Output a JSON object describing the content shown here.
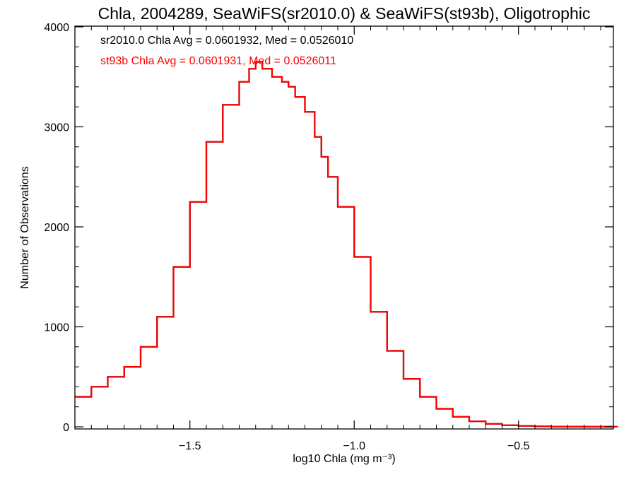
{
  "chart_data": {
    "type": "line",
    "title": "Chla, 2004289, SeaWiFS(sr2010.0) & SeaWiFS(st93b), Oligotrophic",
    "xlabel": "log10 Chla (mg m⁻³)",
    "ylabel": "Number of Observations",
    "xlim": [
      -1.85,
      -0.2
    ],
    "ylim": [
      0,
      4000
    ],
    "x_ticks": [
      -1.5,
      -1.0,
      -0.5
    ],
    "x_tick_labels": [
      "−1.5",
      "−1.0",
      "−0.5"
    ],
    "y_ticks": [
      0,
      1000,
      2000,
      3000,
      4000
    ],
    "y_tick_labels": [
      "0",
      "1000",
      "2000",
      "3000",
      "4000"
    ],
    "grid": false,
    "step": true,
    "annotations": [
      {
        "text": "sr2010.0 Chla Avg = 0.0601932, Med = 0.0526010",
        "color": "#000000"
      },
      {
        "text": "st93b Chla Avg = 0.0601931, Med = 0.0526011",
        "color": "#ff0000"
      }
    ],
    "series": [
      {
        "color": "#000000",
        "x": [
          -1.85,
          -1.8,
          -1.75,
          -1.7,
          -1.65,
          -1.6,
          -1.55,
          -1.5,
          -1.45,
          -1.4,
          -1.35,
          -1.32,
          -1.3,
          -1.28,
          -1.25,
          -1.22,
          -1.2,
          -1.18,
          -1.15,
          -1.12,
          -1.1,
          -1.08,
          -1.05,
          -1.0,
          -0.95,
          -0.9,
          -0.85,
          -0.8,
          -0.75,
          -0.7,
          -0.65,
          -0.6,
          -0.55,
          -0.5,
          -0.45,
          -0.4,
          -0.3,
          -0.2
        ],
        "y": [
          300,
          400,
          500,
          600,
          800,
          1100,
          1600,
          2250,
          2850,
          3220,
          3450,
          3580,
          3650,
          3580,
          3500,
          3450,
          3400,
          3300,
          3150,
          2900,
          2700,
          2500,
          2200,
          1700,
          1150,
          760,
          480,
          300,
          180,
          100,
          55,
          30,
          15,
          10,
          5,
          3,
          1,
          0
        ]
      },
      {
        "color": "#ff0000",
        "x": [
          -1.85,
          -1.8,
          -1.75,
          -1.7,
          -1.65,
          -1.6,
          -1.55,
          -1.5,
          -1.45,
          -1.4,
          -1.35,
          -1.32,
          -1.3,
          -1.28,
          -1.25,
          -1.22,
          -1.2,
          -1.18,
          -1.15,
          -1.12,
          -1.1,
          -1.08,
          -1.05,
          -1.0,
          -0.95,
          -0.9,
          -0.85,
          -0.8,
          -0.75,
          -0.7,
          -0.65,
          -0.6,
          -0.55,
          -0.5,
          -0.45,
          -0.4,
          -0.3,
          -0.2
        ],
        "y": [
          300,
          400,
          500,
          600,
          800,
          1100,
          1600,
          2250,
          2850,
          3220,
          3450,
          3580,
          3650,
          3580,
          3500,
          3450,
          3400,
          3300,
          3150,
          2900,
          2700,
          2500,
          2200,
          1700,
          1150,
          760,
          480,
          300,
          180,
          100,
          55,
          30,
          15,
          10,
          5,
          3,
          1,
          0
        ]
      }
    ]
  }
}
